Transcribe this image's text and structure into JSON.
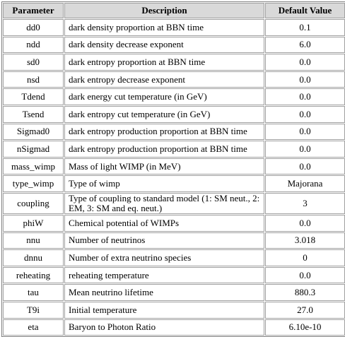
{
  "table": {
    "header": [
      "Parameter",
      "Description",
      "Default Value"
    ],
    "rows": [
      [
        "dd0",
        "dark density proportion at BBN time",
        "0.1"
      ],
      [
        "ndd",
        "dark density decrease exponent",
        "6.0"
      ],
      [
        "sd0",
        "dark entropy proportion at BBN time",
        "0.0"
      ],
      [
        "nsd",
        "dark entropy decrease exponent",
        "0.0"
      ],
      [
        "Tdend",
        "dark energy cut temperature (in GeV)",
        "0.0"
      ],
      [
        "Tsend",
        "dark entropy cut temperature (in GeV)",
        "0.0"
      ],
      [
        "Sigmad0",
        "dark entropy production proportion at BBN time",
        "0.0"
      ],
      [
        "nSigmad",
        "dark entropy production proportion at BBN time",
        "0.0"
      ],
      [
        "mass_wimp",
        "Mass of light WIMP (in MeV)",
        "0.0"
      ],
      [
        "type_wimp",
        "Type of wimp",
        "Majorana"
      ],
      [
        "coupling",
        "Type of coupling to standard model (1: SM neut., 2: EM, 3: SM and eq. neut.)",
        "3"
      ],
      [
        "phiW",
        "Chemical potential of WIMPs",
        "0.0"
      ],
      [
        "nnu",
        "Number of neutrinos",
        "3.018"
      ],
      [
        "dnnu",
        "Number of extra neutrino species",
        "0"
      ],
      [
        "reheating",
        "reheating temperature",
        "0.0"
      ],
      [
        "tau",
        "Mean neutrino lifetime",
        "880.3"
      ],
      [
        "T9i",
        "Initial temperature",
        "27.0"
      ],
      [
        "eta",
        "Baryon to Photon Ratio",
        "6.10e-10"
      ]
    ]
  }
}
